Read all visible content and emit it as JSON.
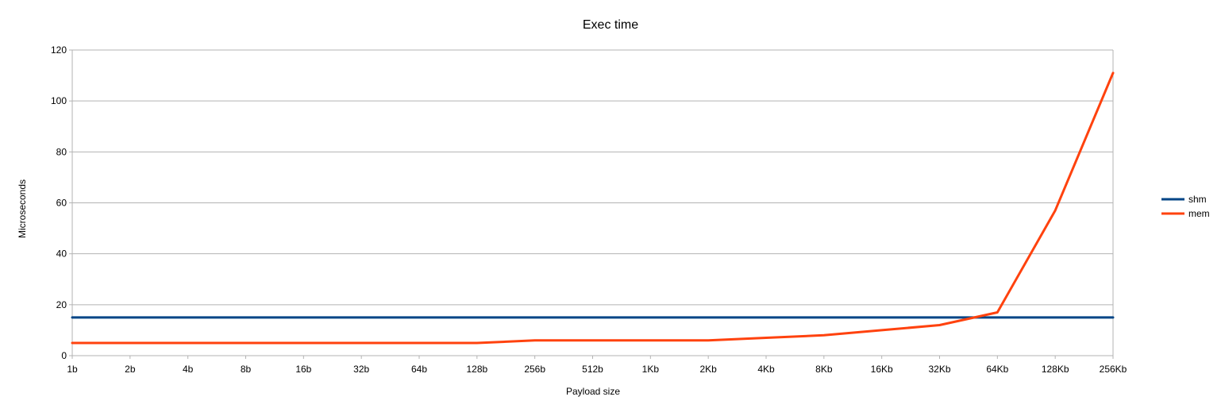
{
  "chart_data": {
    "type": "line",
    "title": "Exec time",
    "xlabel": "Payload size",
    "ylabel": "Microseconds",
    "categories": [
      "1b",
      "2b",
      "4b",
      "8b",
      "16b",
      "32b",
      "64b",
      "128b",
      "256b",
      "512b",
      "1Kb",
      "2Kb",
      "4Kb",
      "8Kb",
      "16Kb",
      "32Kb",
      "64Kb",
      "128Kb",
      "256Kb"
    ],
    "ylim": [
      0,
      120
    ],
    "yticks": [
      "0",
      "20",
      "40",
      "60",
      "80",
      "100",
      "120"
    ],
    "grid": true,
    "legend_position": "right",
    "series": [
      {
        "name": "shm",
        "color": "#004586",
        "values": [
          15,
          15,
          15,
          15,
          15,
          15,
          15,
          15,
          15,
          15,
          15,
          15,
          15,
          15,
          15,
          15,
          15,
          15,
          15
        ]
      },
      {
        "name": "mem",
        "color": "#ff420e",
        "values": [
          5,
          5,
          5,
          5,
          5,
          5,
          5,
          5,
          6,
          6,
          6,
          6,
          7,
          8,
          10,
          12,
          17,
          57,
          111
        ]
      }
    ]
  }
}
